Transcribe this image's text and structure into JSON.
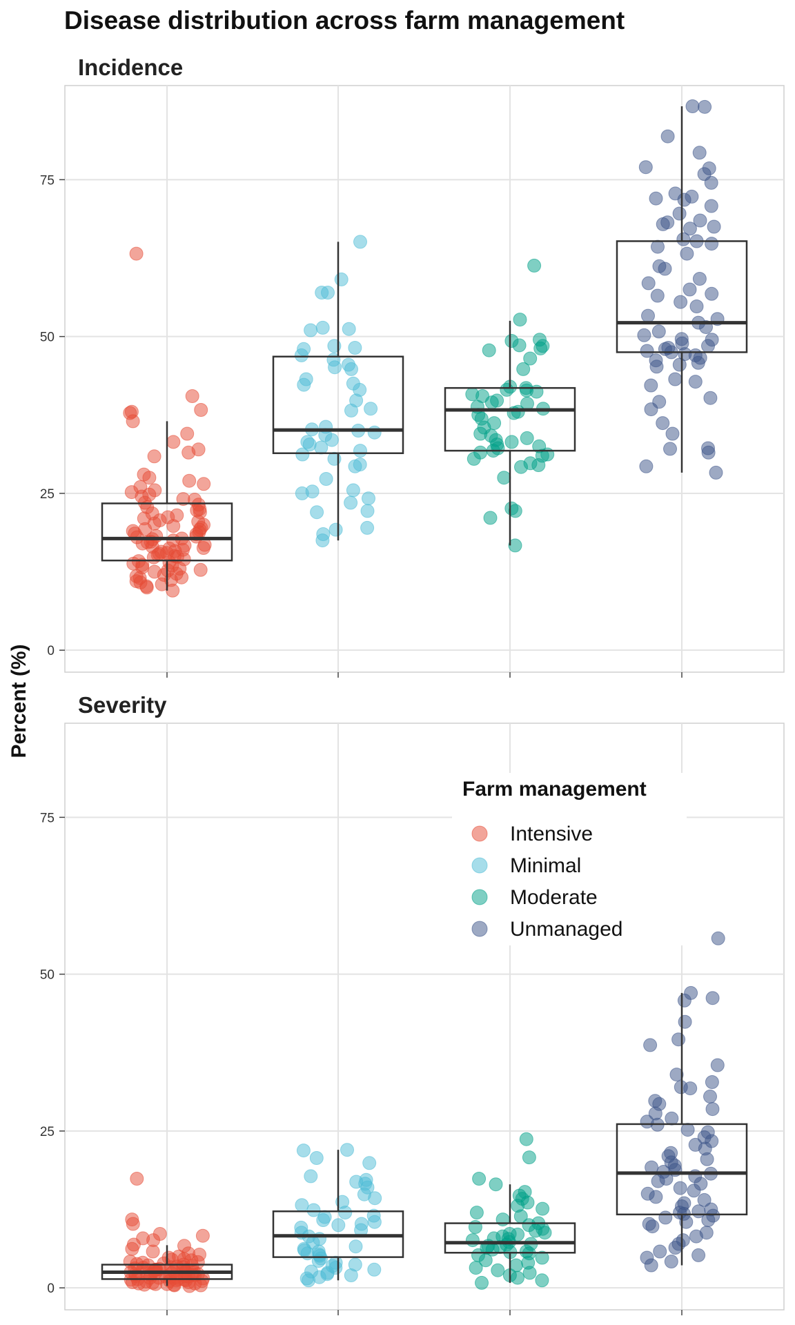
{
  "chart_data": {
    "type": "box-jitter",
    "title": "Disease distribution across farm management",
    "ylabel": "Percent (%)",
    "xlabel": "",
    "ylim": [
      -3.5,
      90
    ],
    "yticks": [
      0,
      25,
      50,
      75
    ],
    "grid": true,
    "categories": [
      "Intensive",
      "Minimal",
      "Moderate",
      "Unmanaged"
    ],
    "colors": {
      "Intensive": "#E64B35",
      "Minimal": "#4DBBD5",
      "Moderate": "#00A087",
      "Unmanaged": "#3C5488"
    },
    "legend": {
      "title": "Farm management",
      "position": "inside-right-of-severity-panel",
      "entries": [
        "Intensive",
        "Minimal",
        "Moderate",
        "Unmanaged"
      ]
    },
    "panels": [
      {
        "title": "Incidence",
        "boxes": [
          {
            "category": "Intensive",
            "min": 9.5,
            "q1": 14.3,
            "median": 17.8,
            "q3": 23.4,
            "max": 36.5
          },
          {
            "category": "Minimal",
            "min": 17.5,
            "q1": 31.4,
            "median": 35.1,
            "q3": 46.8,
            "max": 65.1
          },
          {
            "category": "Moderate",
            "min": 16.7,
            "q1": 31.8,
            "median": 38.3,
            "q3": 41.8,
            "max": 52.5
          },
          {
            "category": "Unmanaged",
            "min": 28.3,
            "q1": 47.5,
            "median": 52.2,
            "q3": 65.2,
            "max": 86.7
          }
        ],
        "points": {
          "Intensive": [
            63.2,
            40.5,
            38.3,
            38.0,
            37.8,
            36.5,
            34.5,
            33.2,
            32.0,
            31.5,
            30.9,
            28.0,
            27.5,
            27.0,
            26.5,
            26.0,
            25.5,
            25.2,
            24.8,
            24.5,
            24.0,
            23.5,
            23.2,
            22.8,
            22.5,
            22.0,
            21.8,
            21.5,
            21.2,
            21.0,
            20.5,
            20.2,
            20.0,
            19.5,
            19.2,
            19.0,
            18.8,
            18.5,
            18.2,
            18.0,
            17.8,
            17.5,
            17.2,
            17.0,
            16.8,
            16.5,
            16.2,
            16.0,
            15.8,
            15.5,
            15.2,
            15.0,
            14.8,
            14.5,
            14.2,
            14.0,
            13.8,
            13.5,
            13.2,
            13.0,
            12.8,
            12.5,
            12.2,
            12.0,
            11.8,
            11.5,
            11.2,
            11.0,
            10.8,
            10.5,
            10.2,
            10.0,
            9.5,
            18.6,
            16.7,
            19.8,
            15.4,
            17.3,
            22.3,
            13.6,
            20.7,
            14.9,
            18.1,
            16.3,
            12.7,
            24.1,
            11.6,
            19.3,
            17.7,
            15.7
          ],
          "Minimal": [
            65.1,
            59.1,
            57.0,
            57.0,
            51.4,
            51.2,
            51.0,
            48.5,
            48.2,
            48.0,
            47.0,
            46.3,
            45.5,
            45.1,
            44.8,
            43.2,
            42.5,
            42.3,
            41.5,
            39.8,
            38.5,
            38.2,
            35.6,
            35.2,
            35.0,
            34.7,
            34.3,
            33.5,
            33.2,
            32.8,
            32.3,
            31.8,
            31.2,
            30.5,
            29.6,
            29.3,
            27.3,
            25.5,
            25.3,
            25.0,
            24.2,
            23.5,
            22.2,
            22.0,
            19.5,
            19.2,
            18.5,
            17.5
          ],
          "Moderate": [
            61.3,
            52.7,
            49.5,
            49.3,
            48.6,
            48.5,
            48.1,
            47.8,
            46.5,
            44.8,
            42.0,
            41.8,
            41.5,
            41.4,
            41.2,
            40.8,
            40.5,
            39.8,
            39.5,
            39.3,
            38.8,
            38.5,
            38.0,
            37.8,
            37.5,
            36.9,
            36.2,
            35.5,
            34.5,
            34.2,
            33.8,
            33.5,
            33.2,
            32.8,
            32.5,
            32.2,
            31.8,
            31.5,
            31.2,
            31.0,
            30.5,
            29.8,
            29.5,
            29.2,
            27.5,
            22.6,
            22.2,
            21.1,
            16.7
          ],
          "Unmanaged": [
            86.7,
            86.6,
            81.9,
            79.3,
            77.0,
            76.8,
            75.9,
            74.5,
            72.8,
            72.3,
            72.0,
            71.8,
            70.8,
            69.6,
            68.5,
            68.2,
            67.9,
            67.5,
            67.2,
            65.5,
            65.2,
            64.8,
            64.3,
            63.2,
            61.2,
            60.8,
            59.2,
            58.5,
            57.5,
            56.8,
            56.5,
            55.5,
            54.8,
            53.3,
            52.8,
            52.2,
            51.5,
            50.8,
            50.2,
            49.6,
            49.5,
            48.9,
            48.5,
            48.2,
            48.0,
            47.7,
            47.5,
            47.2,
            47.0,
            46.6,
            46.2,
            45.8,
            45.5,
            45.2,
            43.2,
            42.8,
            42.2,
            40.2,
            39.6,
            38.4,
            36.2,
            34.5,
            32.2,
            32.1,
            31.5,
            29.3,
            28.3
          ]
        }
      },
      {
        "title": "Severity",
        "boxes": [
          {
            "category": "Intensive",
            "min": 0.3,
            "q1": 1.4,
            "median": 2.5,
            "q3": 3.7,
            "max": 6.8
          },
          {
            "category": "Minimal",
            "min": 1.2,
            "q1": 4.9,
            "median": 8.3,
            "q3": 12.2,
            "max": 22.0
          },
          {
            "category": "Moderate",
            "min": 0.8,
            "q1": 5.6,
            "median": 7.2,
            "q3": 10.3,
            "max": 16.5
          },
          {
            "category": "Unmanaged",
            "min": 3.6,
            "q1": 11.7,
            "median": 18.3,
            "q3": 26.1,
            "max": 47.0
          }
        ],
        "points": {
          "Intensive": [
            17.4,
            10.9,
            10.2,
            8.6,
            8.3,
            7.9,
            7.6,
            6.9,
            6.7,
            6.2,
            5.8,
            5.5,
            5.3,
            5.0,
            4.8,
            4.6,
            4.4,
            4.2,
            4.0,
            3.8,
            3.6,
            3.5,
            3.3,
            3.2,
            3.0,
            2.9,
            2.8,
            2.7,
            2.6,
            2.5,
            2.4,
            2.3,
            2.2,
            2.1,
            2.0,
            1.9,
            1.8,
            1.7,
            1.6,
            1.5,
            1.4,
            1.3,
            1.2,
            1.1,
            1.0,
            0.9,
            0.8,
            0.7,
            0.6,
            0.5,
            0.4,
            0.3,
            3.1,
            2.7,
            1.6,
            4.1,
            2.2,
            0.9,
            3.4,
            1.3,
            2.5,
            0.6,
            1.8,
            2.9,
            3.7,
            1.1,
            2.4,
            0.4,
            4.5,
            1.9,
            2.1,
            3.3,
            0.7,
            1.4,
            2.8,
            3.9,
            1.7,
            0.5,
            2.6,
            1.2
          ],
          "Minimal": [
            22.0,
            21.9,
            20.7,
            19.9,
            17.8,
            17.2,
            16.9,
            16.6,
            16.0,
            14.9,
            14.3,
            13.7,
            13.2,
            12.4,
            12.0,
            11.5,
            11.3,
            10.8,
            10.5,
            10.2,
            10.0,
            9.6,
            9.2,
            8.8,
            8.2,
            7.8,
            7.2,
            6.6,
            6.2,
            6.0,
            5.8,
            5.5,
            5.3,
            5.1,
            4.7,
            4.3,
            4.0,
            3.7,
            3.5,
            3.2,
            2.9,
            2.6,
            2.4,
            2.2,
            2.0,
            1.7,
            1.5,
            1.2
          ],
          "Moderate": [
            23.7,
            20.8,
            17.4,
            16.5,
            15.3,
            14.7,
            14.2,
            13.6,
            13.1,
            12.6,
            12.0,
            11.4,
            10.9,
            10.3,
            10.0,
            9.7,
            9.4,
            9.1,
            8.8,
            8.5,
            8.2,
            7.9,
            7.6,
            7.3,
            7.0,
            6.7,
            6.4,
            6.1,
            5.8,
            5.5,
            5.2,
            4.8,
            4.4,
            4.0,
            3.6,
            3.2,
            2.8,
            2.4,
            2.0,
            1.6,
            1.2,
            0.8,
            6.9,
            7.8,
            5.7,
            6.5,
            8.6
          ],
          "Unmanaged": [
            55.7,
            47.0,
            46.2,
            45.8,
            42.4,
            39.6,
            38.7,
            35.5,
            34.0,
            32.8,
            32.0,
            31.8,
            30.5,
            29.8,
            29.3,
            28.5,
            27.8,
            27.0,
            26.5,
            26.0,
            25.2,
            24.8,
            24.0,
            23.4,
            22.8,
            22.2,
            21.5,
            21.0,
            20.5,
            20.0,
            19.5,
            19.2,
            18.8,
            18.5,
            18.2,
            17.8,
            17.4,
            17.0,
            16.6,
            15.9,
            15.5,
            15.0,
            14.5,
            14.0,
            13.5,
            13.0,
            12.5,
            12.2,
            12.0,
            11.8,
            11.5,
            11.2,
            10.8,
            10.5,
            10.2,
            9.8,
            8.8,
            8.2,
            7.6,
            7.0,
            6.4,
            5.8,
            5.2,
            4.8,
            4.2,
            3.6
          ]
        }
      }
    ]
  }
}
